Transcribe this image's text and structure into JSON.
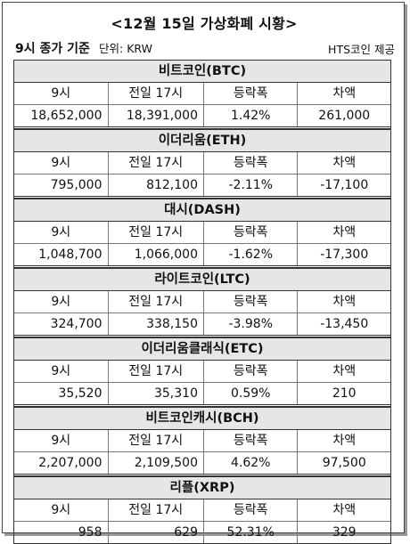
{
  "title": "<12월 15일 가상화폐 시황>",
  "meta": {
    "basis": "9시 종가 기준",
    "unit": "단위: KRW",
    "source": "HTS코인 제공"
  },
  "columns": [
    "9시",
    "전일 17시",
    "등락폭",
    "차액"
  ],
  "coins": [
    {
      "name": "비트코인(BTC)",
      "values": [
        "18,652,000",
        "18,391,000",
        "1.42%",
        "261,000"
      ]
    },
    {
      "name": "이더리움(ETH)",
      "values": [
        "795,000",
        "812,100",
        "-2.11%",
        "-17,100"
      ]
    },
    {
      "name": "대시(DASH)",
      "values": [
        "1,048,700",
        "1,066,000",
        "-1.62%",
        "-17,300"
      ]
    },
    {
      "name": "라이트코인(LTC)",
      "values": [
        "324,700",
        "338,150",
        "-3.98%",
        "-13,450"
      ]
    },
    {
      "name": "이더리움클래식(ETC)",
      "values": [
        "35,520",
        "35,310",
        "0.59%",
        "210"
      ]
    },
    {
      "name": "비트코인캐시(BCH)",
      "values": [
        "2,207,000",
        "2,109,500",
        "4.62%",
        "97,500"
      ]
    },
    {
      "name": "리플(XRP)",
      "values": [
        "958",
        "629",
        "52.31%",
        "329"
      ]
    }
  ]
}
